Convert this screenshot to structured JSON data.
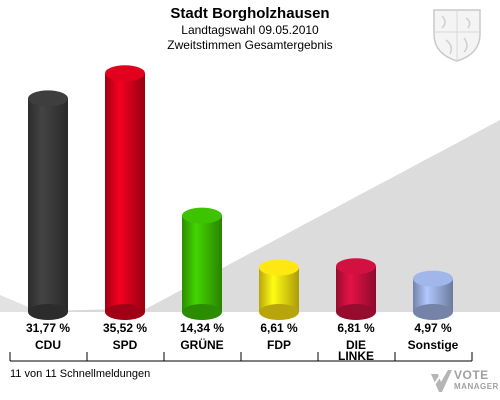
{
  "header": {
    "title": "Stadt Borgholzhausen",
    "subtitle1": "Landtagswahl 09.05.2010",
    "subtitle2": "Zweitstimmen Gesamtergebnis"
  },
  "footer": {
    "status": "11 von 11 Schnellmeldungen",
    "logo_line1": "VOTE",
    "logo_line2": "MANAGER"
  },
  "icons": {
    "coat_of_arms": "coat-of-arms-icon",
    "logo_mark": "vote-manager-logo-icon"
  },
  "colors": {
    "CDU": "#3b3b3b",
    "SPD": "#d6001c",
    "GRUENE": "#3aba00",
    "FDP": "#f5dc10",
    "LINKE": "#c8103e",
    "Sonstige": "#9aaede",
    "background_band": "#d9d9d9"
  },
  "chart_data": {
    "type": "bar",
    "title": "Stadt Borgholzhausen",
    "categories": [
      "CDU",
      "SPD",
      "GRÜNE",
      "FDP",
      "DIE LINKE",
      "Sonstige"
    ],
    "values": [
      31.77,
      35.52,
      14.34,
      6.61,
      6.81,
      4.97
    ],
    "value_labels": [
      "31,77 %",
      "35,52 %",
      "14,34 %",
      "6,61 %",
      "6,81 %",
      "4,97 %"
    ],
    "category_label_lines": [
      [
        "CDU"
      ],
      [
        "SPD"
      ],
      [
        "GRÜNE"
      ],
      [
        "FDP"
      ],
      [
        "DIE",
        "LINKE"
      ],
      [
        "Sonstige"
      ]
    ],
    "colors": [
      "#3b3b3b",
      "#d6001c",
      "#3aba00",
      "#f5dc10",
      "#c8103e",
      "#9aaede"
    ],
    "ylim": [
      0,
      40
    ],
    "grid": false,
    "legend": "none"
  }
}
